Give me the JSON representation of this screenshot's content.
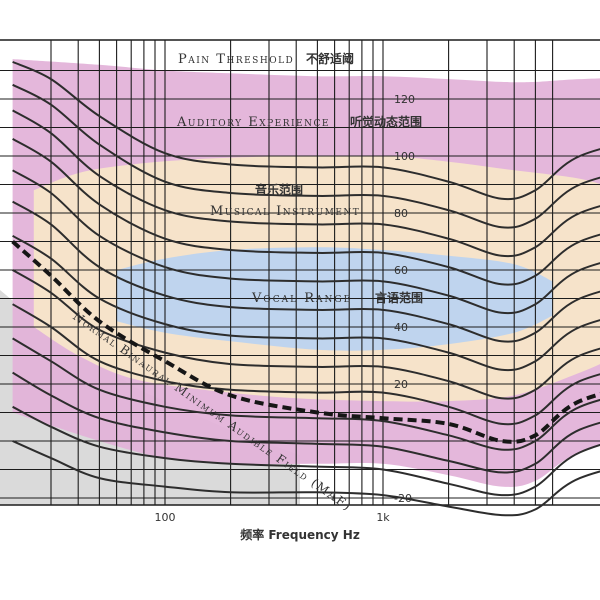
{
  "chart_data": {
    "type": "line",
    "title": "",
    "xlabel": "频率 Frequency Hz",
    "ylabel": "",
    "x_scale": "log",
    "xlim": [
      20,
      20000
    ],
    "ylim": [
      -20,
      130
    ],
    "grid": true,
    "x_tick_labels": [
      {
        "value": 100,
        "label": "100"
      },
      {
        "value": 1000,
        "label": "1k"
      }
    ],
    "y_tick_labels": [
      {
        "value": -20,
        "label": "-20"
      },
      {
        "value": 20,
        "label": "20"
      },
      {
        "value": 40,
        "label": "40"
      },
      {
        "value": 60,
        "label": "60"
      },
      {
        "value": 80,
        "label": "80"
      },
      {
        "value": 100,
        "label": "100"
      },
      {
        "value": 120,
        "label": "120"
      }
    ],
    "x_grid": [
      30,
      40,
      50,
      60,
      70,
      80,
      90,
      100,
      200,
      300,
      400,
      500,
      600,
      700,
      800,
      900,
      1000,
      2000,
      3000,
      4000,
      5000,
      6000
    ],
    "y_grid": [
      -20,
      -10,
      0,
      10,
      20,
      30,
      40,
      50,
      60,
      70,
      80,
      90,
      100,
      110,
      120,
      130
    ],
    "curve_x": [
      20,
      30,
      50,
      100,
      200,
      500,
      1000,
      2000,
      3500,
      5000,
      8000,
      20000
    ],
    "contours": [
      {
        "values": [
          0,
          -6,
          -13,
          -16,
          -18,
          -18,
          -19,
          -23,
          -26,
          -24,
          -13,
          -5
        ]
      },
      {
        "values": [
          12,
          5,
          -2,
          -6,
          -8,
          -9,
          -10,
          -15,
          -19,
          -16,
          -4,
          5
        ]
      },
      {
        "values": [
          24,
          16,
          8,
          3,
          0,
          -1,
          -2,
          -7,
          -11,
          -8,
          4,
          12
        ]
      },
      {
        "values": [
          36,
          28,
          18,
          12,
          9,
          8,
          7,
          2,
          -3,
          0,
          12,
          20
        ]
      },
      {
        "values": [
          48,
          40,
          28,
          21,
          18,
          17,
          17,
          12,
          6,
          9,
          21,
          29
        ]
      },
      {
        "values": [
          60,
          52,
          39,
          31,
          27,
          26,
          26,
          21,
          15,
          18,
          30,
          38
        ]
      },
      {
        "values": [
          72,
          64,
          50,
          41,
          37,
          36,
          36,
          31,
          25,
          28,
          40,
          48
        ]
      },
      {
        "values": [
          84,
          76,
          61,
          51,
          47,
          46,
          46,
          41,
          35,
          38,
          50,
          58
        ]
      },
      {
        "values": [
          95,
          87,
          72,
          61,
          57,
          56,
          56,
          51,
          45,
          48,
          60,
          68
        ]
      },
      {
        "values": [
          106,
          98,
          83,
          71,
          67,
          66,
          66,
          61,
          55,
          58,
          70,
          78
        ]
      },
      {
        "values": [
          116,
          108,
          93,
          81,
          77,
          76,
          76,
          71,
          65,
          68,
          80,
          88
        ]
      },
      {
        "values": [
          125,
          118,
          104,
          91,
          87,
          86,
          86,
          81,
          75,
          78,
          90,
          98
        ]
      },
      {
        "values": [
          133,
          127,
          114,
          101,
          97,
          96,
          96,
          91,
          85,
          88,
          100,
          108
        ]
      }
    ],
    "maf": {
      "label": "Normal Binaural Minimum Audible Field (MAF)",
      "x": [
        20,
        30,
        50,
        100,
        200,
        500,
        1000,
        2000,
        3500,
        5000,
        8000,
        20000
      ],
      "values": [
        70,
        58,
        42,
        28,
        16,
        10,
        8,
        6,
        0,
        2,
        14,
        22
      ]
    },
    "regions": [
      {
        "name": "Pain Threshold",
        "label_en": "Pain Threshold",
        "label_zh": "不舒适阈",
        "color": "#e3b3d9",
        "x": [
          20,
          50,
          100,
          200,
          500,
          1000,
          2000,
          3500,
          5000,
          8000,
          20000
        ],
        "upper": [
          134,
          132,
          130,
          129,
          128,
          128,
          127,
          126,
          126,
          127,
          128
        ],
        "lower": [
          10,
          0,
          -6,
          -8,
          -8,
          -8,
          -12,
          -16,
          -14,
          -4,
          4
        ]
      },
      {
        "name": "Musical Instrument",
        "label_en": "Musical Instrument",
        "label_zh": "音乐范围",
        "color": "#f7e5c9",
        "x": [
          25,
          40,
          70,
          150,
          400,
          1000,
          2000,
          4000,
          8000,
          12000
        ],
        "upper": [
          88,
          94,
          97,
          99,
          100,
          100,
          98,
          95,
          92,
          88
        ],
        "lower": [
          40,
          30,
          22,
          18,
          15,
          14,
          14,
          16,
          24,
          30
        ]
      },
      {
        "name": "Vocal Range",
        "label_en": "Vocal Range",
        "label_zh": "言语范围",
        "color": "#bcd3ef",
        "x": [
          60,
          100,
          200,
          500,
          1000,
          2000,
          4000,
          6000
        ],
        "upper": [
          60,
          64,
          67,
          68,
          67,
          65,
          62,
          56
        ],
        "lower": [
          42,
          38,
          35,
          32,
          32,
          34,
          38,
          44
        ]
      }
    ],
    "labels": {
      "pain": {
        "en": "Pain Threshold",
        "zh": "不舒适阈"
      },
      "auditory": {
        "en": "Auditory Experience",
        "zh": "听觉动态范围"
      },
      "music_zh": "音乐范围",
      "music_en": "Musical Instrument",
      "vocal": {
        "en": "Vocal Range",
        "zh": "言语范围"
      },
      "maf": "Normal Binaural Minimum Audible Field (MAF)"
    }
  }
}
